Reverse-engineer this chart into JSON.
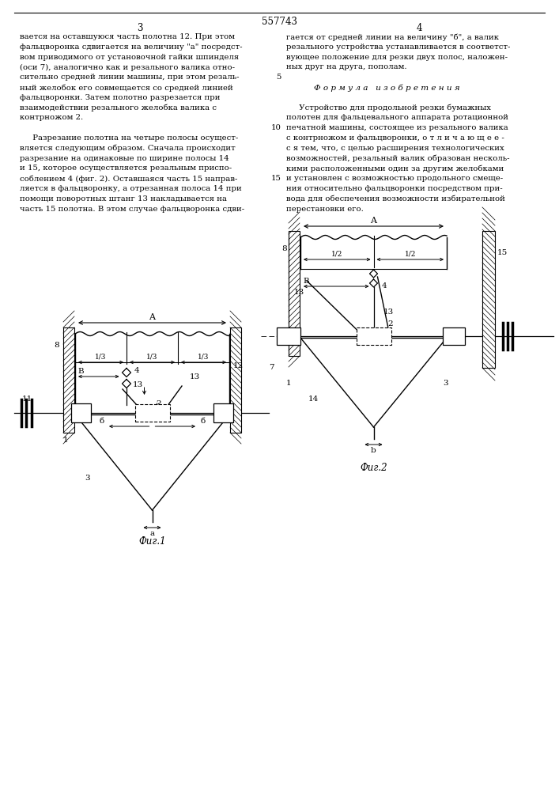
{
  "page_title": "557743",
  "col_left": "3",
  "col_right": "4",
  "text_left": [
    "вается на оставшуюся часть полотна 12. При этом",
    "фальцворонка сдвигается на величину \"а\" посредст-",
    "вом приводимого от установочной гайки шпинделя",
    "(оси 7), аналогично как и резального валика отно-",
    "сительно средней линии машины, при этом резаль-",
    "ный желобок его совмещается со средней линией",
    "фальцворонки. Затем полотно разрезается при",
    "взаимодействии резального желобка валика с",
    "контрножом 2.",
    "",
    "     Разрезание полотна на четыре полосы осущест-",
    "вляется следующим образом. Сначала происходит",
    "разрезание на одинаковые по ширине полосы 14",
    "и 15, которое осуществляется резальным приспо-",
    "соблением 4 (фиг. 2). Оставшаяся часть 15 направ-",
    "ляется в фальцворонку, а отрезанная полоса 14 при",
    "помощи поворотных штанг 13 накладывается на",
    "часть 15 полотна. В этом случае фальцворонка сдви-"
  ],
  "text_right": [
    "гается от средней линии на величину \"б\", а валик",
    "резального устройства устанавливается в соответст-",
    "вующее положение для резки двух полос, наложен-",
    "ных друг на друга, пополам.",
    "",
    "Ф о р м у л а   и з о б р е т е н и я",
    "",
    "     Устройство для продольной резки бумажных",
    "полотен для фальцевального аппарата ротационной",
    "печатной машины, состоящее из резального валика",
    "с контрножом и фальцворонки, о т л и ч а ю щ е е -",
    "с я тем, что, с целью расширения технологических",
    "возможностей, резальный валик образован несколь-",
    "кими расположенными один за другим желобками",
    "и установлен с возможностью продольного смеще-",
    "ния относительно фальцворонки посредством при-",
    "вода для обеспечения возможности избирательной",
    "перестановки его."
  ],
  "fig1_caption": "Фиг.1",
  "fig2_caption": "Фиг.2"
}
